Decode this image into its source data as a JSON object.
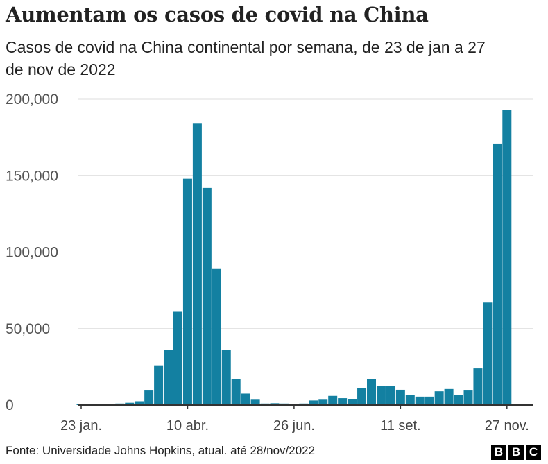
{
  "title": "Aumentam os casos de covid na China",
  "subtitle": "Casos de covid na China continental por semana, de 23 de jan a 27 de nov de 2022",
  "source": "Fonte: Universidade Johns Hopkins, atual. até 28/nov/2022",
  "logo": "BBC",
  "chart_data": {
    "type": "bar",
    "color": "#1380A1",
    "ylim": [
      0,
      200000
    ],
    "grid": true,
    "y_ticks": [
      0,
      50000,
      100000,
      150000,
      200000
    ],
    "y_tick_labels": [
      "0",
      "50,000",
      "100,000",
      "150,000",
      "200,000"
    ],
    "x_tick_labels": [
      {
        "index": 0,
        "label": "23 jan."
      },
      {
        "index": 11,
        "label": "10 abr."
      },
      {
        "index": 22,
        "label": "26 jun."
      },
      {
        "index": 33,
        "label": "11 set."
      },
      {
        "index": 44,
        "label": "27 nov."
      }
    ],
    "values": [
      500,
      500,
      500,
      700,
      1000,
      1500,
      2500,
      9500,
      26000,
      36000,
      61000,
      148000,
      184000,
      142000,
      89000,
      36000,
      17000,
      7500,
      3500,
      1000,
      1200,
      1000,
      500,
      1000,
      3000,
      3500,
      6000,
      4500,
      4000,
      11300,
      16800,
      12500,
      12500,
      10000,
      6500,
      5500,
      5500,
      9000,
      10500,
      6500,
      9500,
      24000,
      67000,
      171000,
      193000
    ]
  }
}
